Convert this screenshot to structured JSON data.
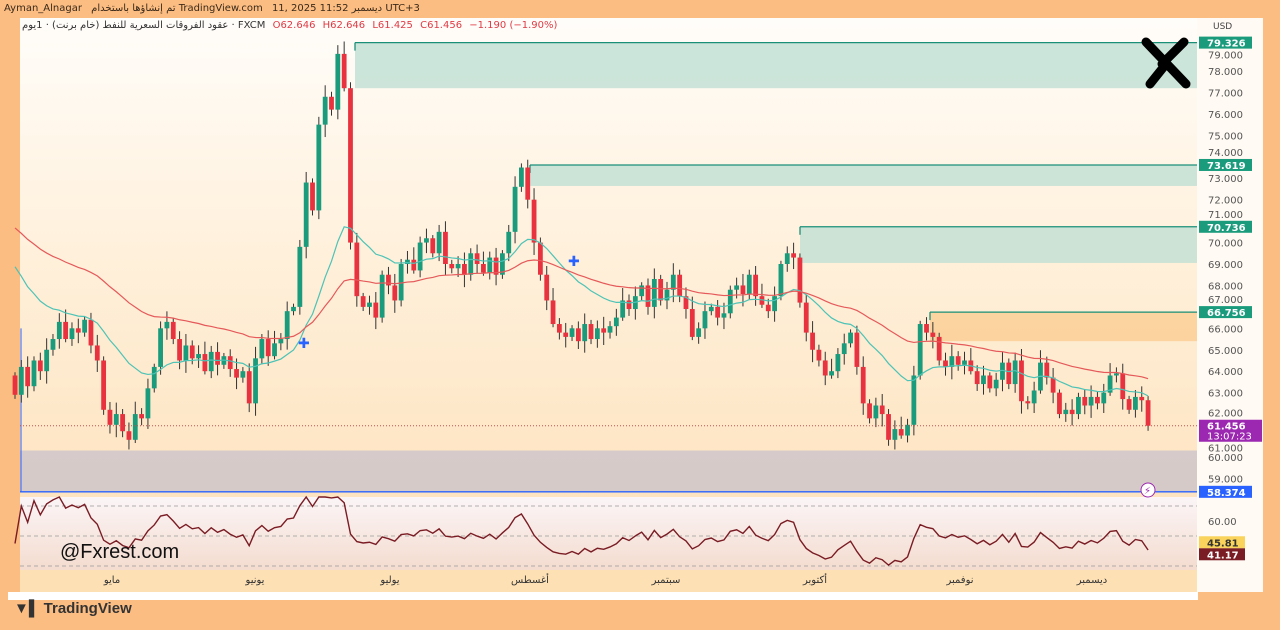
{
  "header": {
    "user": "Ayman_Alnagar",
    "published_note": "تم إنشاؤها باستخدام TradingView.com",
    "datetime": "11, 2025 ديسمبر 11:52 UTC+3"
  },
  "legend": {
    "symbol": "عقود الفروقات السعرية للنفط (خام برنت) · 1يوم · FXCM",
    "open": "O62.646",
    "high": "H62.646",
    "low": "L61.425",
    "close": "C61.456",
    "change": "−1.190 (−1.90%)"
  },
  "axis": {
    "currency": "USD",
    "ticks": [
      "79.000",
      "78.000",
      "77.000",
      "76.000",
      "75.000",
      "74.000",
      "73.000",
      "72.000",
      "71.000",
      "70.000",
      "69.000",
      "68.000",
      "67.000",
      "66.000",
      "65.000",
      "64.000",
      "63.000",
      "62.000",
      "61.000",
      "60.000",
      "59.000"
    ],
    "level_labels": [
      "79.326",
      "73.619",
      "70.736",
      "66.756",
      "58.374"
    ],
    "last_price": "61.456",
    "countdown": "13:07:23",
    "rsi_tick": "60.00",
    "rsi_values": [
      "45.81",
      "41.17"
    ]
  },
  "time_axis": [
    "مايو",
    "يونيو",
    "يوليو",
    "أغسطس",
    "سبتمبر",
    "أكتوبر",
    "نوفمبر",
    "ديسمبر"
  ],
  "watermark": "@Fxrest.com",
  "branding": "TradingView",
  "colors": {
    "up": "#1a9b7c",
    "down": "#e8323f",
    "ema_fast": "#4cc3b6",
    "ema_slow": "#e5595a",
    "rsi": "#7a1c24",
    "supply_zone": "#c3e1d5",
    "orange_zone": "#fccf95",
    "gray_zone": "#cfc6ca",
    "last_price": "#9c27b0",
    "support_line": "#2962ff"
  },
  "chart_data": {
    "type": "candlestick",
    "ylim": [
      57.6,
      80.6
    ],
    "close": [
      62.9,
      64.2,
      63.3,
      64.5,
      64.0,
      65.0,
      65.5,
      66.3,
      65.5,
      66.0,
      65.8,
      66.4,
      65.2,
      64.5,
      62.2,
      61.5,
      62.0,
      61.2,
      60.8,
      62.0,
      61.8,
      63.2,
      64.2,
      66.0,
      66.3,
      65.5,
      64.5,
      65.2,
      64.6,
      64.8,
      64.0,
      64.9,
      64.3,
      64.7,
      64.1,
      63.7,
      64.0,
      62.5,
      64.6,
      65.5,
      64.7,
      65.3,
      65.5,
      66.8,
      67.0,
      69.8,
      72.8,
      71.5,
      75.5,
      76.8,
      76.2,
      78.8,
      77.2,
      70.0,
      67.5,
      67.0,
      67.2,
      66.5,
      68.5,
      68.0,
      67.3,
      69.0,
      69.2,
      68.7,
      70.0,
      70.2,
      69.5,
      70.5,
      69.0,
      68.8,
      69.0,
      68.5,
      69.5,
      69.0,
      68.6,
      69.3,
      68.5,
      69.5,
      70.5,
      72.6,
      73.5,
      72.0,
      70.0,
      68.5,
      67.3,
      66.2,
      65.8,
      65.6,
      66.0,
      65.4,
      66.2,
      65.5,
      66.0,
      65.8,
      66.1,
      66.5,
      67.3,
      66.9,
      67.5,
      68.0,
      67.0,
      68.3,
      67.3,
      67.8,
      68.5,
      67.5,
      66.9,
      65.6,
      66.0,
      66.8,
      67.0,
      66.5,
      66.7,
      67.8,
      68.0,
      67.6,
      68.5,
      67.5,
      67.1,
      66.8,
      67.5,
      69.0,
      69.5,
      69.3,
      67.2,
      65.8,
      65.0,
      64.5,
      63.8,
      64.0,
      64.8,
      65.3,
      65.8,
      64.2,
      62.5,
      61.8,
      62.4,
      62.0,
      60.8,
      61.3,
      61.0,
      61.5,
      63.8,
      66.2,
      65.8,
      65.6,
      64.5,
      64.2,
      64.7,
      64.3,
      64.5,
      64.0,
      63.4,
      63.8,
      63.2,
      63.6,
      64.4,
      63.4,
      64.5,
      62.6,
      62.5,
      63.1,
      64.4,
      63.7,
      63.0,
      62.0,
      62.2,
      62.0,
      62.8,
      62.4,
      62.8,
      62.5,
      63.0,
      63.8,
      63.9,
      62.7,
      62.2,
      62.8,
      62.646,
      61.456
    ],
    "zones": [
      {
        "type": "supply",
        "top": 79.326,
        "bottom": 77.2
      },
      {
        "type": "supply",
        "top": 73.619,
        "bottom": 72.64
      },
      {
        "type": "supply",
        "top": 70.736,
        "bottom": 69.05
      },
      {
        "type": "orange",
        "top": 66.756,
        "bottom": 65.4
      },
      {
        "type": "support",
        "top": 60.3,
        "bottom": 58.374
      }
    ],
    "rsi_levels": [
      70,
      50,
      30
    ]
  }
}
